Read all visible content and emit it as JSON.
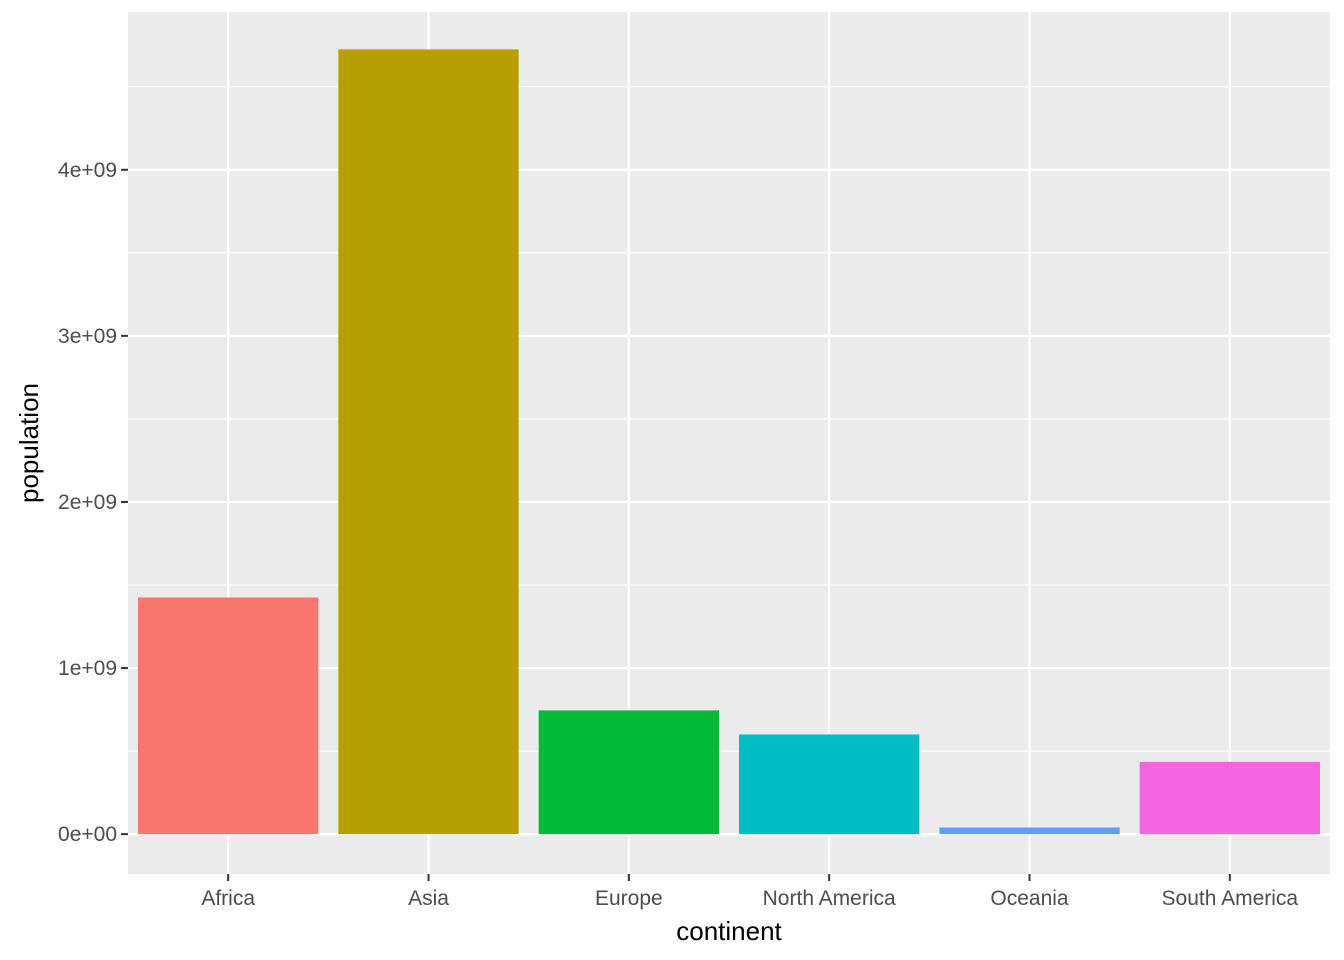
{
  "chart_data": {
    "type": "bar",
    "title": "",
    "xlabel": "continent",
    "ylabel": "population",
    "categories": [
      "Africa",
      "Asia",
      "Europe",
      "North America",
      "Oceania",
      "South America"
    ],
    "values": [
      1425000000,
      4725000000,
      745000000,
      600000000,
      40000000,
      435000000
    ],
    "colors": [
      "#F8766D",
      "#B79F00",
      "#00BA38",
      "#00BFC4",
      "#619CFF",
      "#F564E3"
    ],
    "ylim": [
      -240000000,
      4950000000
    ],
    "yticks": [
      0,
      1000000000,
      2000000000,
      3000000000,
      4000000000
    ],
    "ytick_labels": [
      "0e+00",
      "1e+09",
      "2e+09",
      "3e+09",
      "4e+09"
    ],
    "panel_background": "#EBEBEB",
    "grid": true,
    "legend": "none"
  }
}
